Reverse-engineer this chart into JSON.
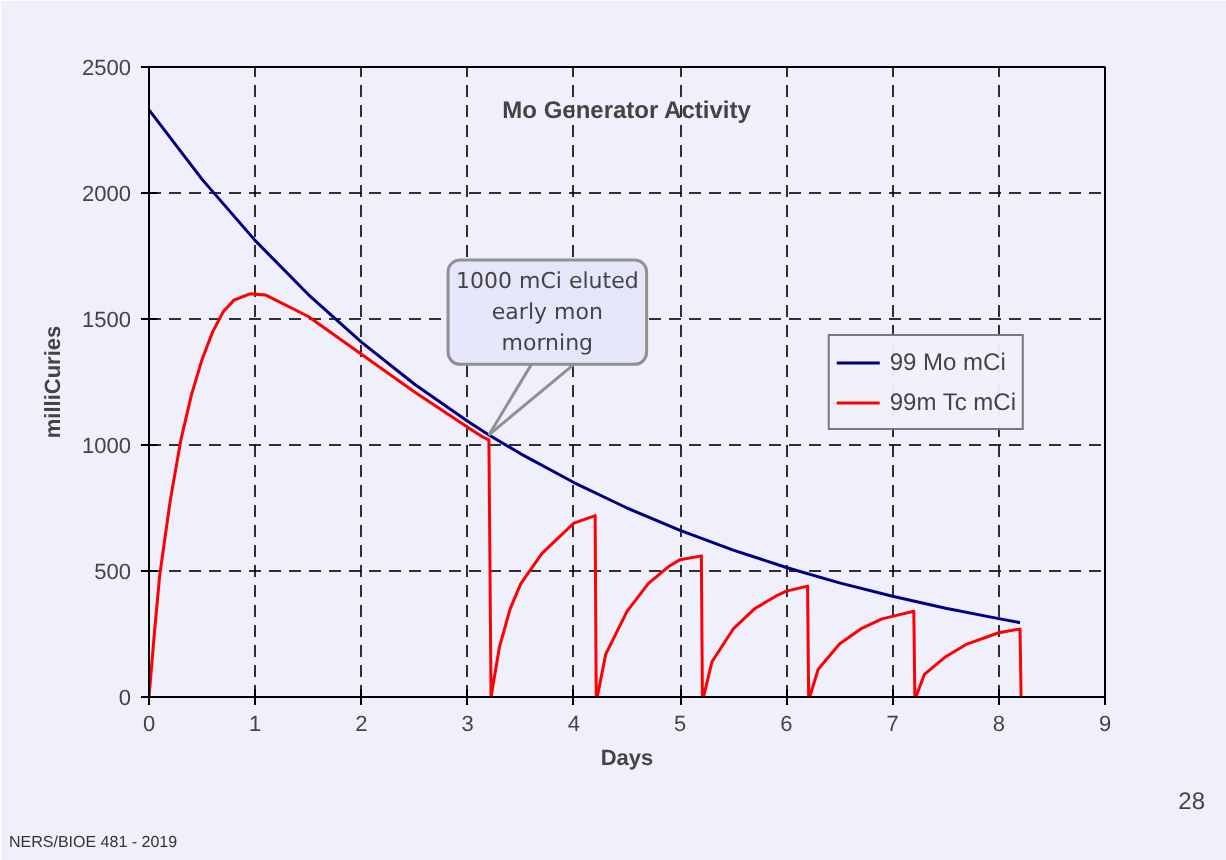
{
  "chart_data": {
    "type": "line",
    "title": "Mo Generator Activity",
    "xlabel": "Days",
    "ylabel": "milliCuries",
    "xlim": [
      0,
      9
    ],
    "ylim": [
      0,
      2500
    ],
    "xticks": [
      0,
      1,
      2,
      3,
      4,
      5,
      6,
      7,
      8,
      9
    ],
    "yticks": [
      0,
      500,
      1000,
      1500,
      2000,
      2500
    ],
    "grid": true,
    "legend": "right",
    "line_style": "solid",
    "marker": "none",
    "series": [
      {
        "name": "99 Mo mCi",
        "color": "#000080",
        "x": [
          0,
          0.5,
          1,
          1.5,
          2,
          2.5,
          3,
          3.2,
          3.5,
          4,
          4.5,
          5,
          5.5,
          6,
          6.5,
          7,
          7.5,
          8,
          8.2
        ],
        "values": [
          2330,
          2054,
          1811,
          1597,
          1408,
          1241,
          1094,
          1040,
          965,
          851,
          750,
          661,
          583,
          514,
          453,
          400,
          352,
          311,
          295
        ]
      },
      {
        "name": "99m Tc mCi",
        "color": "#ff0000",
        "x": [
          0,
          0.05,
          0.1,
          0.2,
          0.3,
          0.4,
          0.5,
          0.6,
          0.7,
          0.8,
          0.95,
          1.1,
          1.5,
          2,
          2.5,
          3,
          3.15,
          3.2,
          3.22,
          3.3,
          3.4,
          3.5,
          3.7,
          3.9,
          4.0,
          4.2,
          4.21,
          4.22,
          4.3,
          4.5,
          4.7,
          4.9,
          5.0,
          5.2,
          5.21,
          5.22,
          5.3,
          5.5,
          5.7,
          5.9,
          6.0,
          6.2,
          6.21,
          6.22,
          6.3,
          6.5,
          6.7,
          6.9,
          7.0,
          7.2,
          7.21,
          7.22,
          7.3,
          7.5,
          7.7,
          7.9,
          8.0,
          8.2,
          8.21
        ],
        "values": [
          0,
          250,
          480,
          780,
          1020,
          1200,
          1340,
          1450,
          1530,
          1575,
          1600,
          1595,
          1510,
          1360,
          1210,
          1070,
          1030,
          1020,
          0,
          200,
          350,
          450,
          570,
          650,
          690,
          720,
          0,
          0,
          170,
          340,
          450,
          520,
          545,
          560,
          0,
          0,
          140,
          270,
          350,
          400,
          420,
          440,
          0,
          0,
          110,
          210,
          270,
          310,
          320,
          340,
          0,
          0,
          90,
          160,
          210,
          240,
          255,
          270,
          0
        ]
      }
    ],
    "annotations": [
      {
        "text": "1000 mCi eluted\nearly mon\nmorning",
        "x": 3.2,
        "y": 1040
      },
      "NERS/BIOE 481 - 2019",
      "28"
    ]
  }
}
